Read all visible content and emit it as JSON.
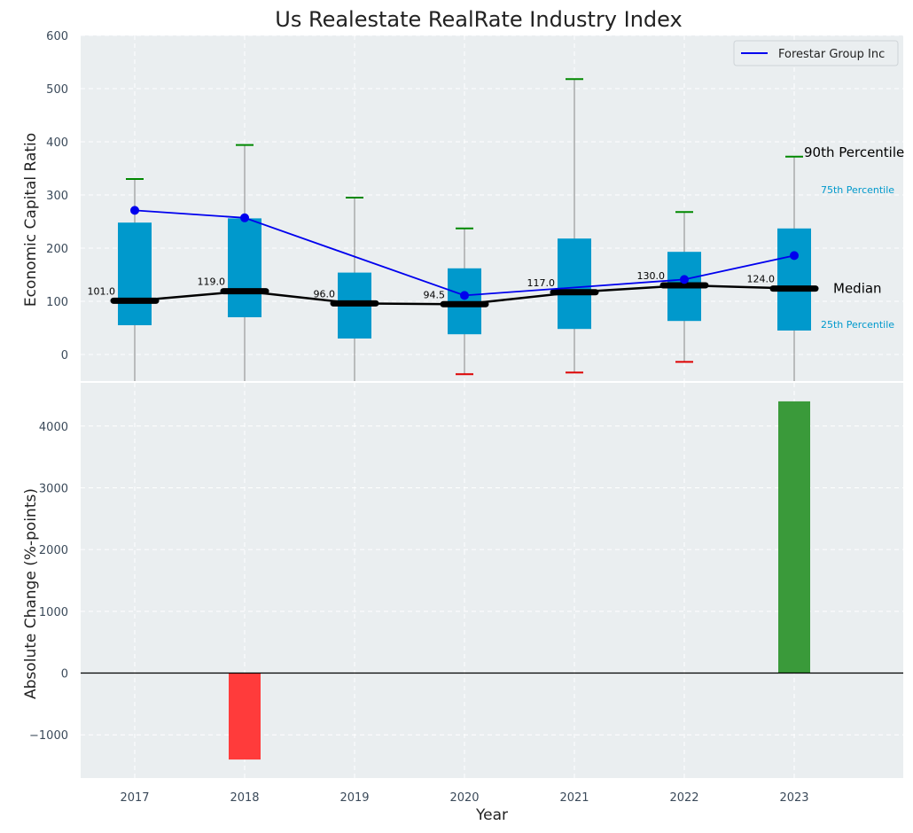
{
  "chart_data": {
    "type": "box",
    "title": "Us Realestate RealRate Industry Index",
    "xlabel": "Year",
    "categories": [
      "2017",
      "2018",
      "2019",
      "2020",
      "2021",
      "2022",
      "2023"
    ],
    "top_panel": {
      "ylabel": "Economic Capital Ratio",
      "ylim": [
        -50,
        600
      ],
      "yticks": [
        "0",
        "100",
        "200",
        "300",
        "400",
        "500",
        "600"
      ],
      "p25": [
        55,
        70,
        30,
        38,
        48,
        63,
        45
      ],
      "median": [
        101.0,
        119.0,
        96.0,
        94.5,
        117.0,
        130.0,
        124.0
      ],
      "median_labels": [
        "101.0",
        "119.0",
        "96.0",
        "94.5",
        "117.0",
        "130.0",
        "124.0"
      ],
      "p75": [
        248,
        256,
        154,
        162,
        218,
        193,
        237
      ],
      "p90": [
        330,
        394,
        295,
        237,
        518,
        268,
        372
      ],
      "p10": [
        null,
        null,
        null,
        -37,
        -34,
        -14,
        null
      ],
      "company_series": {
        "name": "Forestar Group Inc",
        "values": [
          271,
          257,
          null,
          111,
          null,
          141,
          186
        ]
      },
      "annotations": {
        "p90": "90th Percentile",
        "p75": "75th Percentile",
        "median": "Median",
        "p25": "25th Percentile"
      },
      "legend_position": "upper right"
    },
    "bottom_panel": {
      "ylabel": "Absolute Change (%-points)",
      "ylim": [
        -1700,
        4700
      ],
      "yticks": [
        "−1000",
        "0",
        "1000",
        "2000",
        "3000",
        "4000"
      ],
      "values": [
        null,
        -1400,
        null,
        null,
        null,
        null,
        4400
      ]
    },
    "colors": {
      "box": "#0099cc",
      "company_line": "#0000ee",
      "median_line": "#000000",
      "cap_high": "#008800",
      "cap_low": "#dd0000",
      "whisker": "#888888",
      "bar_negative": "#ff3b3b",
      "bar_positive": "#3a9a3a",
      "panel_bg": "#eaeef0",
      "grid": "#ffffff"
    },
    "grid": true
  }
}
